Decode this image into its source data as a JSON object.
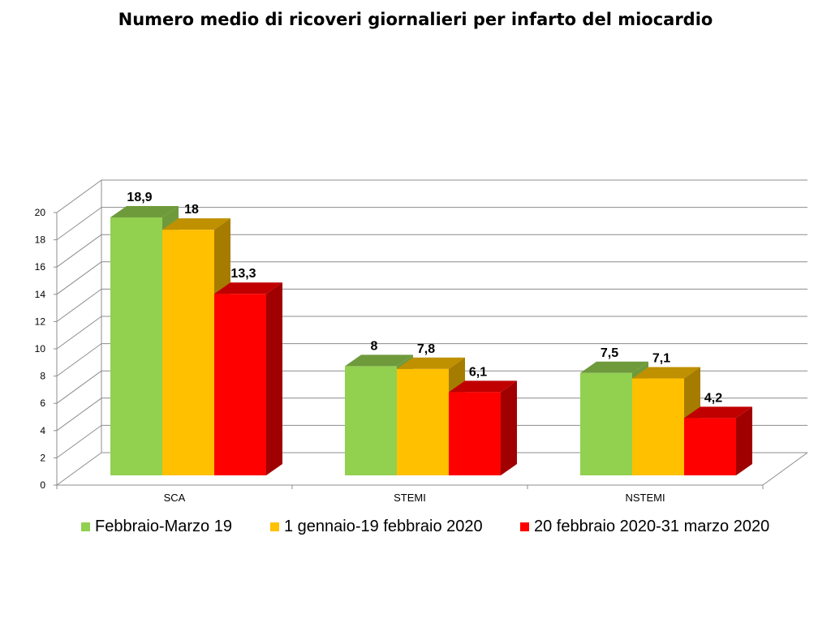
{
  "title": "Numero medio di ricoveri giornalieri per infarto del miocardio",
  "chart_data": {
    "type": "bar",
    "title": "Numero medio di ricoveri giornalieri per infarto del miocardio",
    "categories": [
      "SCA",
      "STEMI",
      "NSTEMI"
    ],
    "series": [
      {
        "name": "Febbraio-Marzo 19",
        "values": [
          18.9,
          8,
          7.5
        ],
        "labels": [
          "18,9",
          "8",
          "7,5"
        ],
        "color": "#92D050",
        "top_color": "#6F9A3C",
        "side_color": "#6F9A3C"
      },
      {
        "name": "1 gennaio-19 febbraio 2020",
        "values": [
          18,
          7.8,
          7.1
        ],
        "labels": [
          "18",
          "7,8",
          "7,1"
        ],
        "color": "#FFC000",
        "top_color": "#BF9000",
        "side_color": "#A67C00"
      },
      {
        "name": "20 febbraio 2020-31 marzo 2020",
        "values": [
          13.3,
          6.1,
          4.2
        ],
        "labels": [
          "13,3",
          "6,1",
          "4,2"
        ],
        "color": "#FF0000",
        "top_color": "#C00000",
        "side_color": "#A00000"
      }
    ],
    "ylim": [
      0,
      20
    ],
    "yticks": [
      0,
      2,
      4,
      6,
      8,
      10,
      12,
      14,
      16,
      18,
      20
    ],
    "xlabel": "",
    "ylabel": "",
    "grid": true,
    "three_d": true,
    "legend_position": "bottom"
  }
}
